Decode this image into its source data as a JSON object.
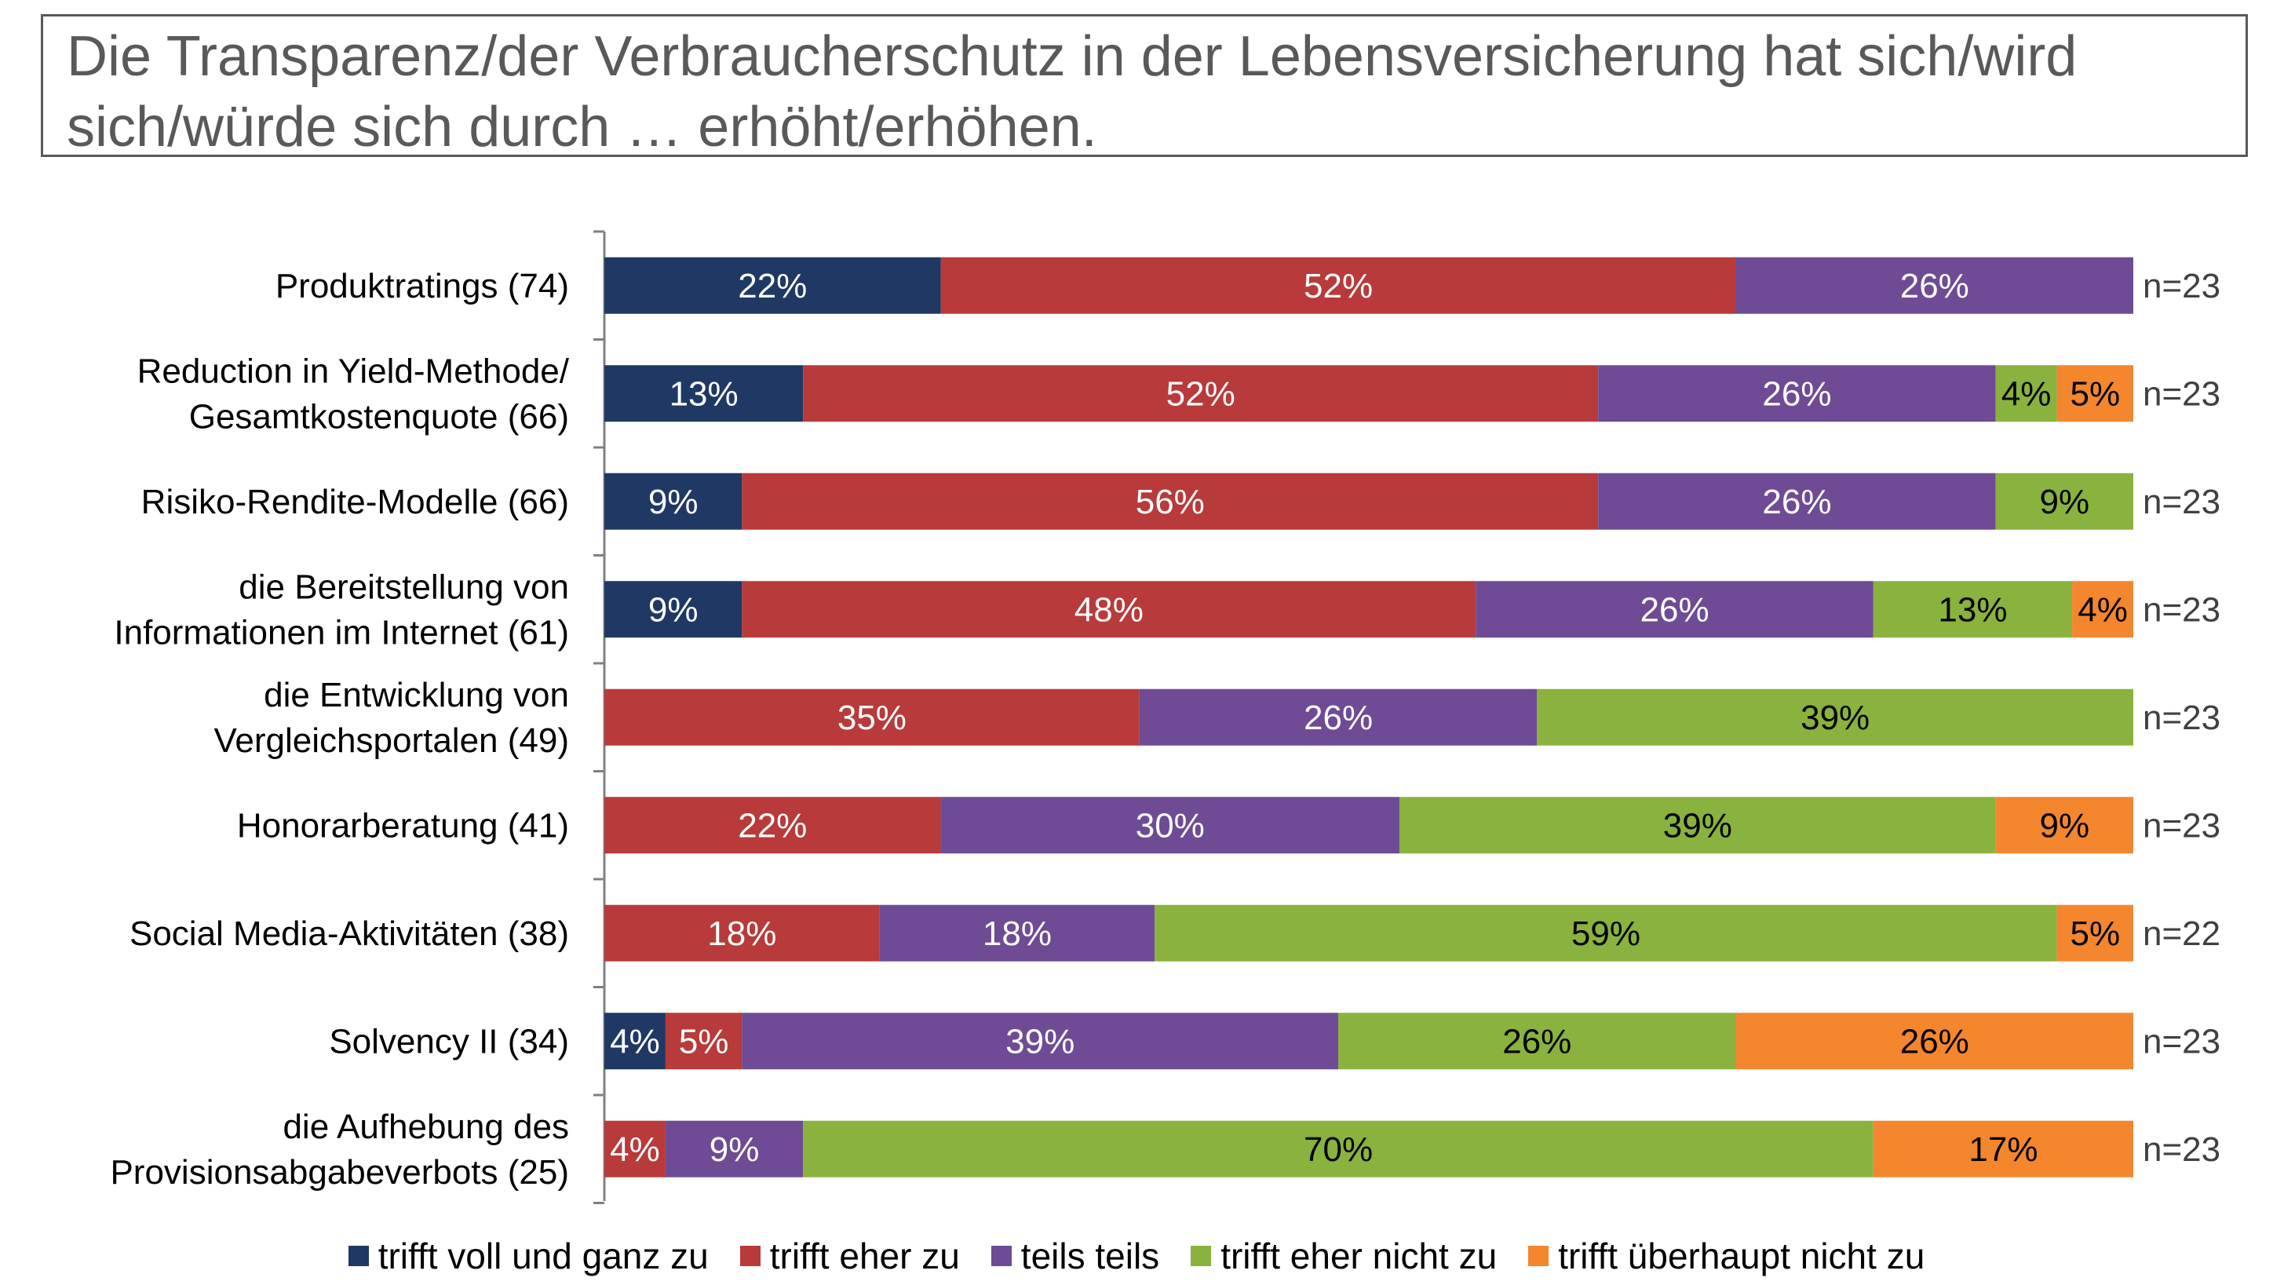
{
  "title": "Die Transparenz/der Verbraucherschutz in der Lebensversicherung hat sich/wird sich/würde sich durch … erhöht/erhöhen.",
  "chart_data": {
    "type": "bar",
    "orientation": "horizontal",
    "stacked": true,
    "value_unit": "%",
    "xlim": [
      0,
      100
    ],
    "grid": false,
    "legend_position": "bottom",
    "categories": [
      [
        "Produktratings (74)"
      ],
      [
        "Reduction in Yield-Methode/",
        "Gesamtkostenquote (66)"
      ],
      [
        "Risiko-Rendite-Modelle (66)"
      ],
      [
        "die Bereitstellung von",
        "Informationen im Internet (61)"
      ],
      [
        "die Entwicklung von",
        "Vergleichsportalen (49)"
      ],
      [
        "Honorarberatung (41)"
      ],
      [
        "Social Media-Aktivitäten (38)"
      ],
      [
        "Solvency II (34)"
      ],
      [
        "die Aufhebung des",
        "Provisionsabgabeverbots (25)"
      ]
    ],
    "n_labels": [
      "n=23",
      "n=23",
      "n=23",
      "n=23",
      "n=23",
      "n=23",
      "n=22",
      "n=23",
      "n=23"
    ],
    "series": [
      {
        "name": "trifft voll und ganz zu",
        "color": "#1f3864",
        "label_color": "#ffffff",
        "values": [
          22,
          13,
          9,
          9,
          0,
          0,
          0,
          4,
          0
        ]
      },
      {
        "name": "trifft eher zu",
        "color": "#b83a3a",
        "label_color": "#ffffff",
        "values": [
          52,
          52,
          56,
          48,
          35,
          22,
          18,
          5,
          4
        ]
      },
      {
        "name": "teils teils",
        "color": "#6e4b94",
        "label_color": "#ffffff",
        "values": [
          26,
          26,
          26,
          26,
          26,
          30,
          18,
          39,
          9
        ]
      },
      {
        "name": "trifft eher nicht zu",
        "color": "#8ab23e",
        "label_color": "#000000",
        "values": [
          0,
          4,
          9,
          13,
          39,
          39,
          59,
          26,
          70
        ]
      },
      {
        "name": "trifft überhaupt nicht zu",
        "color": "#f4862e",
        "label_color": "#000000",
        "values": [
          0,
          5,
          0,
          4,
          0,
          9,
          5,
          26,
          17
        ]
      }
    ]
  }
}
